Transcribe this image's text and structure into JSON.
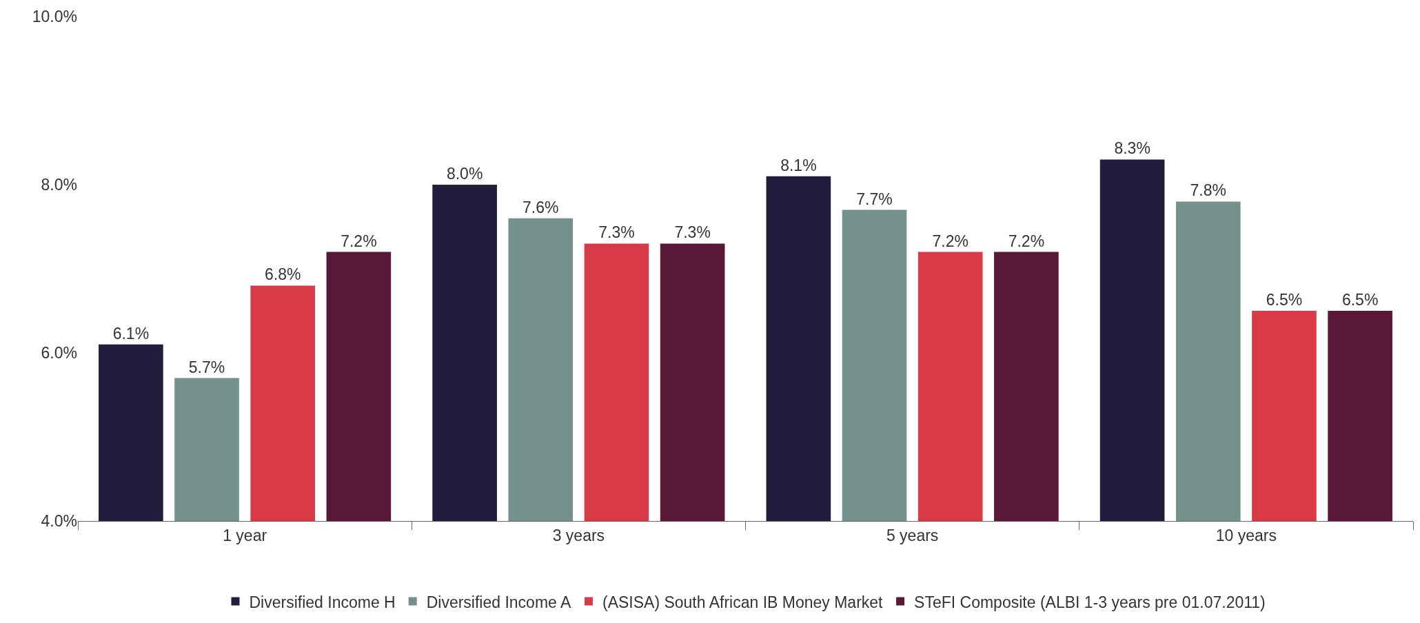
{
  "chart_data": {
    "type": "bar",
    "categories": [
      "1 year",
      "3 years",
      "5 years",
      "10 years"
    ],
    "series": [
      {
        "name": "Diversified Income H",
        "color": "#221d3d",
        "values": [
          6.1,
          8.0,
          8.1,
          8.3
        ],
        "value_labels": [
          "6.1%",
          "8.0%",
          "8.1%",
          "8.3%"
        ]
      },
      {
        "name": "Diversified Income A",
        "color": "#74918c",
        "values": [
          5.7,
          7.6,
          7.7,
          7.8
        ],
        "value_labels": [
          "5.7%",
          "7.6%",
          "7.7%",
          "7.8%"
        ]
      },
      {
        "name": "(ASISA) South African IB Money Market",
        "color": "#d83a47",
        "values": [
          6.8,
          7.3,
          7.2,
          6.5
        ],
        "value_labels": [
          "6.8%",
          "7.3%",
          "7.2%",
          "6.5%"
        ]
      },
      {
        "name": "STeFI Composite (ALBI 1-3 years pre 01.07.2011)",
        "color": "#5a1838",
        "values": [
          7.2,
          7.3,
          7.2,
          6.5
        ],
        "value_labels": [
          "7.2%",
          "7.3%",
          "7.2%",
          "6.5%"
        ]
      }
    ],
    "ylim": [
      4,
      10
    ],
    "yticks": [
      {
        "value": 4,
        "label": "4.0%"
      },
      {
        "value": 6,
        "label": "6.0%"
      },
      {
        "value": 8,
        "label": "8.0%"
      },
      {
        "value": 10,
        "label": "10.0%"
      }
    ],
    "grid": false,
    "legend": "bottom"
  }
}
